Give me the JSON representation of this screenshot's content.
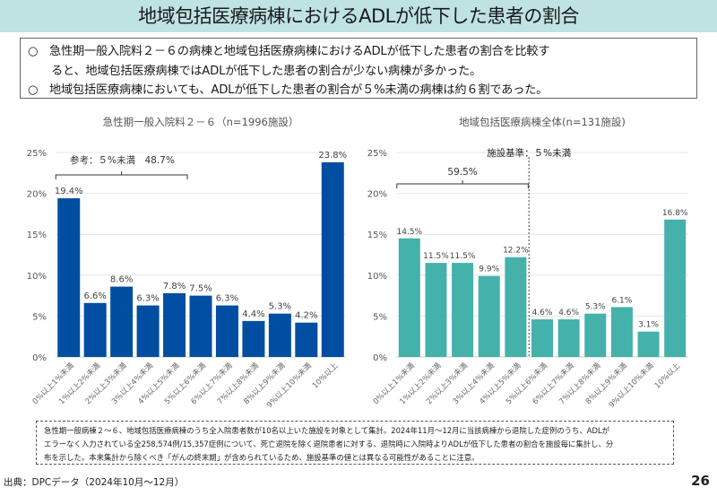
{
  "header": {
    "title": "地域包括医療病棟におけるADLが低下した患者の割合"
  },
  "summary": {
    "bullet_icon": "○",
    "lines": [
      "急性期一般入院料２－６の病棟と地域包括医療病棟におけるADLが低下した患者の割合を比較す",
      "ると、地域包括医療病棟ではADLが低下した患者の割合が少ない病棟が多かった。",
      "地域包括医療病棟においても、ADLが低下した患者の割合が５%未満の病棟は約６割であった。"
    ]
  },
  "chart_data": [
    {
      "type": "bar",
      "title": "急性期一般入院料２－６（n=1996施設）",
      "xlabel": "",
      "ylabel": "",
      "ylim": [
        0,
        25
      ],
      "yticks": [
        "0%",
        "5%",
        "10%",
        "15%",
        "20%",
        "25%"
      ],
      "grid": true,
      "color": "#004ea2",
      "categories": [
        "0%以上1%未満",
        "1%以上2%未満",
        "2%以上3%未満",
        "3%以上4%未満",
        "4%以上5%未満",
        "5%以上6%未満",
        "6%以上7%未満",
        "7%以上8%未満",
        "8%以上9%未満",
        "9%以上10%未満",
        "10%以上"
      ],
      "values": [
        19.4,
        6.6,
        8.6,
        6.3,
        7.8,
        7.5,
        6.3,
        4.4,
        5.3,
        4.2,
        23.8
      ],
      "data_labels": [
        "19.4%",
        "6.6%",
        "8.6%",
        "6.3%",
        "7.8%",
        "7.5%",
        "6.3%",
        "4.4%",
        "5.3%",
        "4.2%",
        "23.8%"
      ],
      "annotation": {
        "text": "参考：５%未満　48.7%",
        "bracket_from": 0,
        "bracket_to": 4
      }
    },
    {
      "type": "bar",
      "title": "地域包括医療病棟全体(n=131施設)",
      "xlabel": "",
      "ylabel": "",
      "ylim": [
        0,
        25
      ],
      "yticks": [
        "0%",
        "5%",
        "10%",
        "15%",
        "20%",
        "25%"
      ],
      "grid": true,
      "color": "#45b1ab",
      "categories": [
        "0%以上1%未満",
        "1%以上2%未満",
        "2%以上3%未満",
        "3%以上4%未満",
        "4%以上5%未満",
        "5%以上6%未満",
        "6%以上7%未満",
        "7%以上8%未満",
        "8%以上9%未満",
        "9%以上10%未満",
        "10%以上"
      ],
      "values": [
        14.5,
        11.5,
        11.5,
        9.9,
        12.2,
        4.6,
        4.6,
        5.3,
        6.1,
        3.1,
        16.8
      ],
      "data_labels": [
        "14.5%",
        "11.5%",
        "11.5%",
        "9.9%",
        "12.2%",
        "4.6%",
        "4.6%",
        "5.3%",
        "6.1%",
        "3.1%",
        "16.8%"
      ],
      "annotation": {
        "text": "59.5%",
        "bracket_from": 0,
        "bracket_to": 4
      },
      "threshold": {
        "label": "施設基準：５%未満",
        "between_index": 4.5
      }
    }
  ],
  "notes": {
    "lines": [
      "急性期一般病棟２～６、地域包括医療病棟のうち全入院患者数が10名以上いた施設を対象として集計。2024年11月～12月に当該病棟から退院した症例のうち、ADLが",
      "エラーなく入力されている全258,574例/15,357症例について、死亡退院を除く退院患者に対する、退院時に入院時よりADLが低下した患者の割合を施設毎に集計し、分",
      "布を示した。本来集計から除くべき「がんの終末期」が含められているため、施設基準の値とは異なる可能性があることに注意。"
    ]
  },
  "footer": {
    "source": "出典：DPCデータ（2024年10月～12月）",
    "page_number": "26"
  }
}
